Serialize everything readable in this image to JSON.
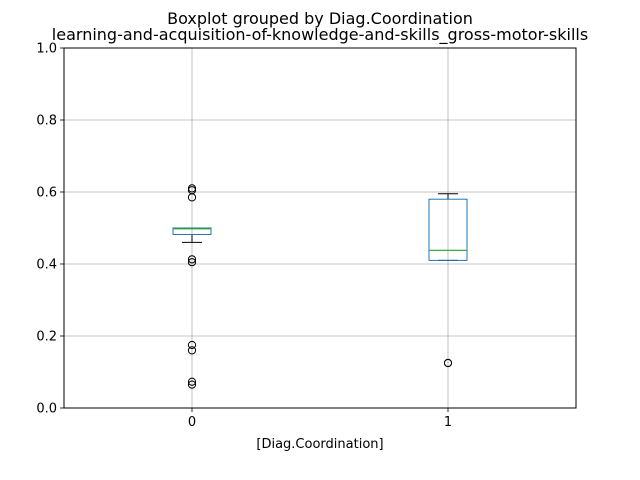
{
  "chart_data": {
    "type": "boxplot",
    "suptitle": "Boxplot grouped by Diag.Coordination",
    "title": "learning-and-acquisition-of-knowledge-and-skills_gross-motor-skills",
    "xlabel": "[Diag.Coordination]",
    "ylabel": "",
    "ylim": [
      0.0,
      1.0
    ],
    "yticks": [
      "0.0",
      "0.2",
      "0.4",
      "0.6",
      "0.8",
      "1.0"
    ],
    "grid": true,
    "categories": [
      "0",
      "1"
    ],
    "boxes": [
      {
        "category": "0",
        "whisker_low": 0.46,
        "q1": 0.482,
        "median": 0.498,
        "q3": 0.5,
        "whisker_high": 0.5,
        "outliers": [
          0.61,
          0.605,
          0.585,
          0.413,
          0.405,
          0.175,
          0.16,
          0.073,
          0.065
        ]
      },
      {
        "category": "1",
        "whisker_low": 0.41,
        "q1": 0.41,
        "median": 0.438,
        "q3": 0.58,
        "whisker_high": 0.595,
        "outliers": [
          0.125,
          0.125
        ]
      }
    ],
    "colors": {
      "box": "#1f77b4",
      "median": "#2ca02c",
      "whisker": "#000000",
      "grid": "#b0b0b0"
    }
  }
}
